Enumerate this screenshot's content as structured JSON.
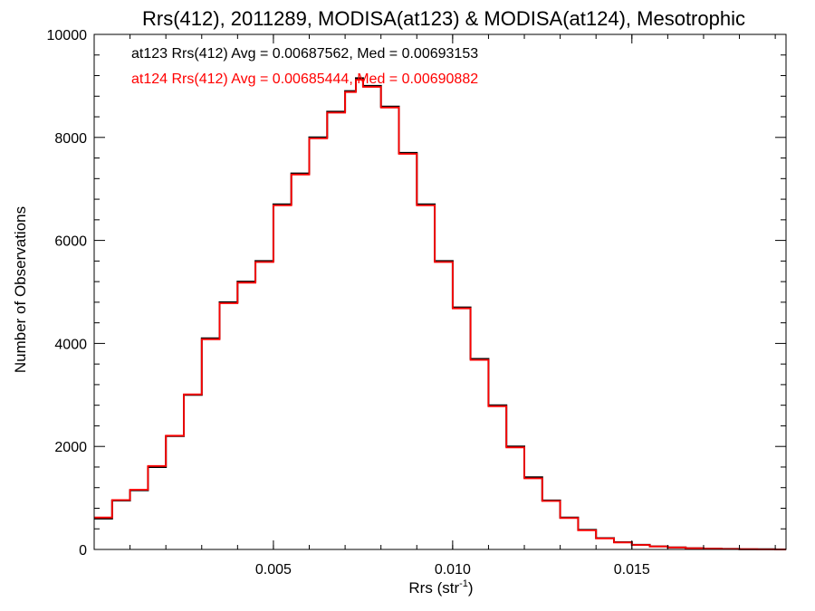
{
  "chart_data": {
    "type": "line",
    "title": "Rrs(412), 2011289, MODISA(at123) & MODISA(at124), Mesotrophic",
    "xlabel_main": "Rrs (str",
    "xlabel_sup": "-1",
    "xlabel_close": ")",
    "ylabel": "Number of Observations",
    "xlim": [
      0.0,
      0.0193
    ],
    "ylim": [
      0,
      10000
    ],
    "xticks": [
      0.005,
      0.01,
      0.015
    ],
    "xtick_labels": [
      "0.005",
      "0.010",
      "0.015"
    ],
    "yticks": [
      0,
      2000,
      4000,
      6000,
      8000,
      10000
    ],
    "ytick_labels": [
      "0",
      "2000",
      "4000",
      "6000",
      "8000",
      "10000"
    ],
    "grid": false,
    "legend_position": "top-left",
    "x": [
      0.0,
      0.0005,
      0.001,
      0.0015,
      0.002,
      0.0025,
      0.003,
      0.0035,
      0.004,
      0.0045,
      0.005,
      0.0055,
      0.006,
      0.0065,
      0.007,
      0.0073,
      0.0075,
      0.008,
      0.0085,
      0.009,
      0.0095,
      0.01,
      0.0105,
      0.011,
      0.0115,
      0.012,
      0.0125,
      0.013,
      0.0135,
      0.014,
      0.0145,
      0.015,
      0.0155,
      0.016,
      0.0165,
      0.017,
      0.0175,
      0.018,
      0.0185,
      0.019
    ],
    "series": [
      {
        "name": "at123",
        "color": "#000000",
        "legend_text": "at123 Rrs(412) Avg = 0.00687562, Med = 0.00693153",
        "values": [
          600,
          950,
          1150,
          1600,
          2200,
          3000,
          4100,
          4800,
          5200,
          5600,
          6700,
          7300,
          8000,
          8500,
          8900,
          9150,
          9000,
          8600,
          7700,
          6700,
          5600,
          4700,
          3700,
          2800,
          2000,
          1400,
          950,
          620,
          380,
          220,
          140,
          90,
          60,
          40,
          25,
          15,
          10,
          5,
          3,
          0
        ]
      },
      {
        "name": "at124",
        "color": "#ff0000",
        "legend_text": "at124 Rrs(412) Avg = 0.00685444, Med = 0.00690882",
        "values": [
          620,
          960,
          1160,
          1620,
          2210,
          3010,
          4080,
          4780,
          5180,
          5580,
          6680,
          7280,
          7980,
          8480,
          8880,
          9120,
          8980,
          8580,
          7680,
          6680,
          5580,
          4680,
          3680,
          2780,
          1980,
          1380,
          940,
          610,
          370,
          215,
          135,
          88,
          58,
          38,
          24,
          14,
          9,
          5,
          2,
          0
        ]
      }
    ]
  }
}
